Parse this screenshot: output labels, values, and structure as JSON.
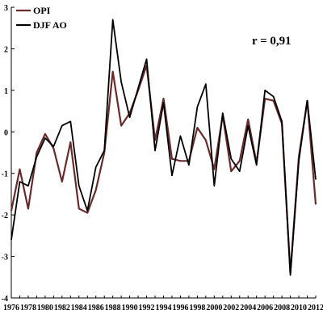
{
  "chart_data": {
    "type": "line",
    "x": [
      1976,
      1977,
      1978,
      1979,
      1980,
      1981,
      1982,
      1983,
      1984,
      1985,
      1986,
      1987,
      1988,
      1989,
      1990,
      1991,
      1992,
      1993,
      1994,
      1995,
      1996,
      1997,
      1998,
      1999,
      2000,
      2001,
      2002,
      2003,
      2004,
      2005,
      2006,
      2007,
      2008,
      2009,
      2010,
      2011,
      2012
    ],
    "series": [
      {
        "name": "OPI",
        "color": "#6b2a2a",
        "values": [
          -1.9,
          -0.9,
          -1.85,
          -0.5,
          -0.05,
          -0.4,
          -1.2,
          -0.25,
          -1.85,
          -1.95,
          -1.4,
          -0.5,
          1.45,
          0.15,
          0.45,
          1.0,
          1.6,
          -0.2,
          0.8,
          -0.65,
          -0.7,
          -0.7,
          0.1,
          -0.2,
          -0.9,
          0.4,
          -0.95,
          -0.7,
          0.3,
          -0.75,
          0.8,
          0.75,
          0.2,
          -3.4,
          -0.6,
          0.75,
          -1.75
        ]
      },
      {
        "name": "DJF AO",
        "color": "#000000",
        "values": [
          -2.6,
          -1.2,
          -1.3,
          -0.6,
          -0.15,
          -0.35,
          0.15,
          0.25,
          -1.3,
          -1.9,
          -0.85,
          -0.45,
          2.7,
          1.2,
          0.35,
          1.05,
          1.75,
          -0.45,
          0.7,
          -1.05,
          -0.1,
          -0.8,
          0.6,
          1.15,
          -1.3,
          0.45,
          -0.65,
          -0.95,
          0.15,
          -0.8,
          1.0,
          0.85,
          0.25,
          -3.45,
          -0.7,
          0.75,
          -1.15
        ]
      }
    ],
    "ylim": [
      -4,
      3
    ],
    "yticks": [
      3,
      2,
      1,
      0,
      -1,
      -2,
      -3,
      -4
    ],
    "xticks": [
      1976,
      1978,
      1980,
      1982,
      1984,
      1986,
      1988,
      1990,
      1992,
      1994,
      1996,
      1998,
      2000,
      2002,
      2004,
      2006,
      2008,
      2010,
      2012
    ],
    "xlim": [
      1976,
      2012
    ],
    "legend_position": "top-left",
    "annotation": "r = 0,91",
    "grid": false
  }
}
